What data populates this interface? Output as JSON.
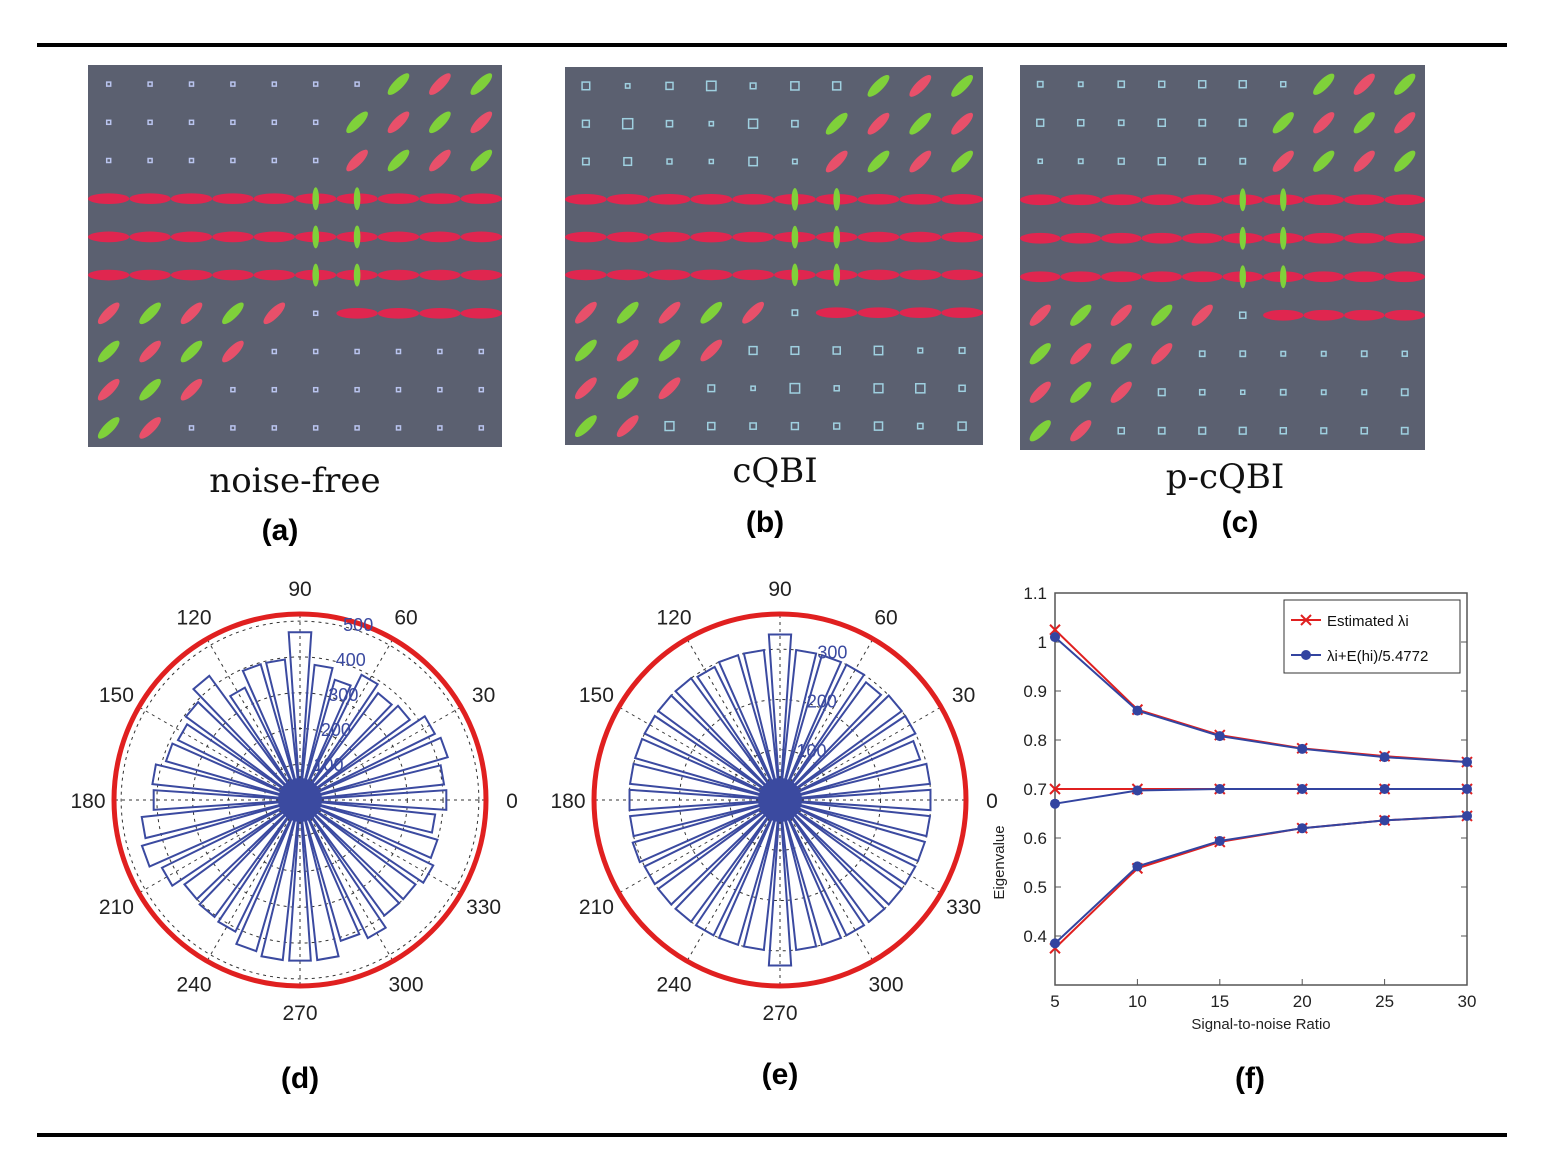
{
  "figure": {
    "panels": [
      {
        "label": "(a)",
        "caption": "noise-free"
      },
      {
        "label": "(b)",
        "caption": "cQBI"
      },
      {
        "label": "(c)",
        "caption": "p-cQBI"
      },
      {
        "label": "(d)",
        "caption": ""
      },
      {
        "label": "(e)",
        "caption": ""
      },
      {
        "label": "(f)",
        "caption": ""
      }
    ],
    "colors": {
      "glyph_background": "#5b6070",
      "fiber_red": "#e0264f",
      "fiber_green": "#7fd13a",
      "polar_blue": "#3b4aa0",
      "polar_ring": "#e02020"
    }
  },
  "chart_data": [
    {
      "type": "polar-histogram",
      "panel": "(d)",
      "angle_ticks": [
        "0",
        "30",
        "60",
        "90",
        "120",
        "150",
        "180",
        "210",
        "240",
        "270",
        "300",
        "330"
      ],
      "radial_ticks": [
        "100",
        "200",
        "300",
        "400",
        "500"
      ],
      "rmax": 520,
      "bin_width_deg": 10,
      "values": [
        410,
        405,
        430,
        420,
        380,
        370,
        390,
        350,
        380,
        470,
        395,
        395,
        350,
        430,
        395,
        380,
        390,
        415,
        410,
        445,
        460,
        430,
        400,
        405,
        410,
        440,
        450,
        450,
        450,
        410,
        430,
        400,
        400,
        415,
        400,
        380
      ]
    },
    {
      "type": "polar-histogram",
      "panel": "(e)",
      "angle_ticks": [
        "0",
        "30",
        "60",
        "90",
        "120",
        "150",
        "180",
        "210",
        "240",
        "270",
        "300",
        "330"
      ],
      "radial_ticks": [
        "100",
        "200",
        "300"
      ],
      "rmax": 370,
      "bin_width_deg": 10,
      "values": [
        300,
        300,
        290,
        300,
        300,
        290,
        300,
        300,
        300,
        330,
        300,
        300,
        295,
        300,
        300,
        300,
        300,
        300,
        300,
        300,
        305,
        300,
        300,
        300,
        300,
        300,
        300,
        330,
        300,
        300,
        300,
        300,
        300,
        300,
        300,
        300
      ]
    },
    {
      "type": "line",
      "panel": "(f)",
      "xlabel": "Signal-to-noise Ratio",
      "ylabel": "Eigenvalue",
      "x": [
        5,
        10,
        15,
        20,
        25,
        30
      ],
      "xlim": [
        5,
        30
      ],
      "ylim": [
        0.3,
        1.1
      ],
      "xticks": [
        "5",
        "10",
        "15",
        "20",
        "25",
        "30"
      ],
      "yticks": [
        "0.4",
        "0.5",
        "0.6",
        "0.7",
        "0.8",
        "0.9",
        "1",
        "1.1"
      ],
      "legend_position": "top-right",
      "series": [
        {
          "name": "Estimated λi",
          "color": "#e02020",
          "marker": "x",
          "lines": [
            [
              1.025,
              0.862,
              0.81,
              0.783,
              0.767,
              0.755
            ],
            [
              0.7,
              0.7,
              0.7,
              0.7,
              0.7,
              0.7
            ],
            [
              0.375,
              0.538,
              0.592,
              0.62,
              0.636,
              0.645
            ]
          ]
        },
        {
          "name": "λi+E(hi)/5.4772",
          "color": "#3344a0",
          "marker": "circle",
          "lines": [
            [
              1.01,
              0.86,
              0.808,
              0.782,
              0.765,
              0.755
            ],
            [
              0.67,
              0.697,
              0.7,
              0.7,
              0.7,
              0.7
            ],
            [
              0.385,
              0.542,
              0.594,
              0.62,
              0.636,
              0.645
            ]
          ]
        }
      ]
    }
  ]
}
